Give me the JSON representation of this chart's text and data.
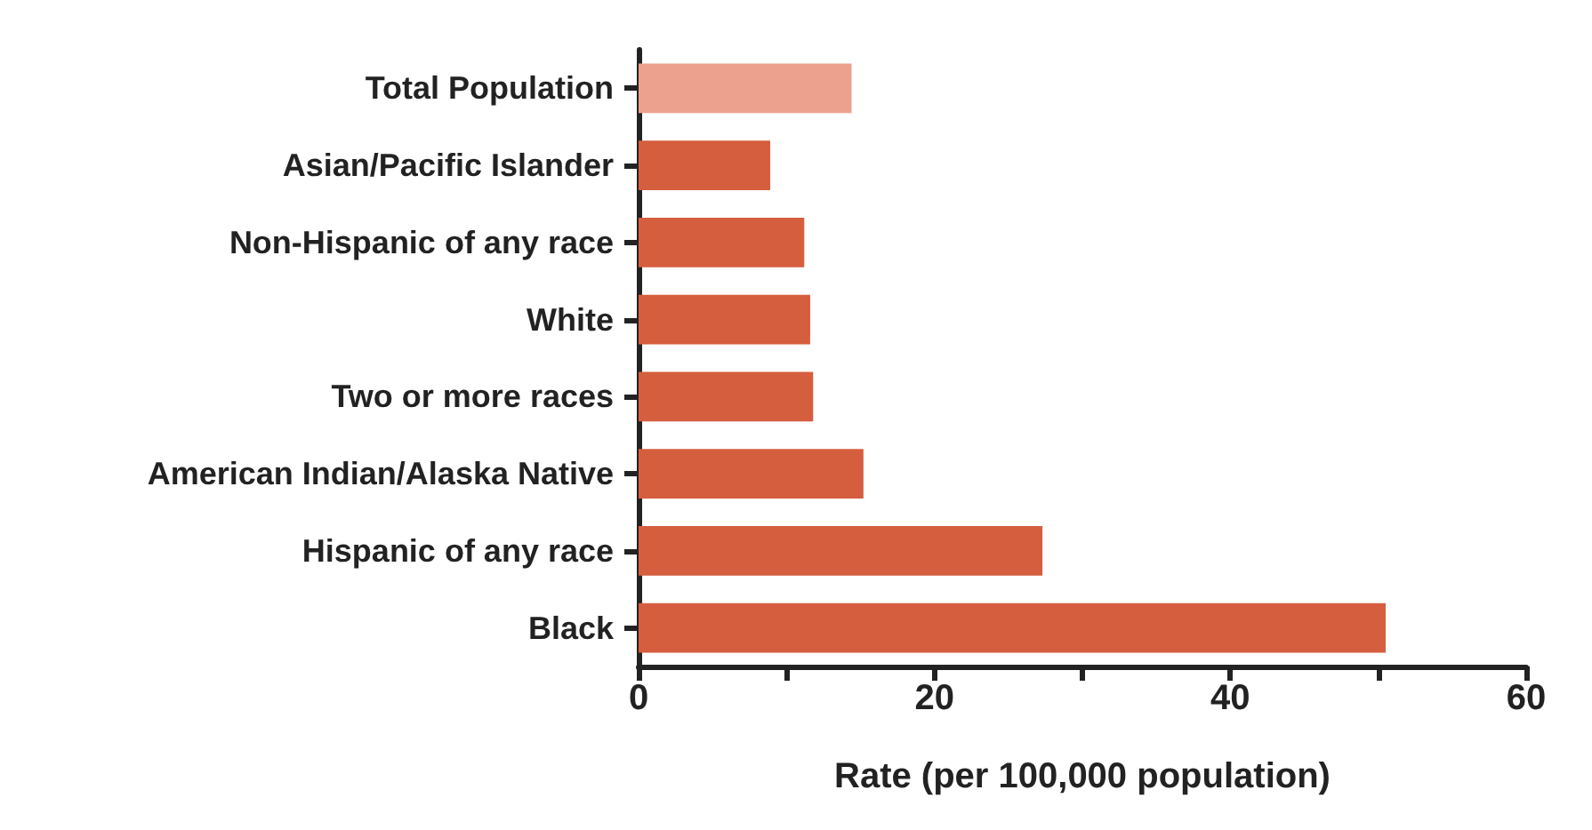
{
  "chart_data": {
    "type": "bar",
    "orientation": "horizontal",
    "xlabel": "Rate (per 100,000 population)",
    "categories": [
      "Total Population",
      "Asian/Pacific Islander",
      "Non-Hispanic of any race",
      "White",
      "Two or more races",
      "American Indian/Alaska Native",
      "Hispanic of any race",
      "Black"
    ],
    "values": [
      14.4,
      8.9,
      11.2,
      11.6,
      11.8,
      15.2,
      27.3,
      50.5
    ],
    "colors": [
      "#eba18d",
      "#d55e3e",
      "#d55e3e",
      "#d55e3e",
      "#d55e3e",
      "#d55e3e",
      "#d55e3e",
      "#d55e3e"
    ],
    "xlim": [
      0,
      60
    ],
    "xticks": [
      0,
      {
        "value": 10,
        "label": null
      },
      20,
      {
        "value": 30,
        "label": null
      },
      40,
      {
        "value": 50,
        "label": null
      },
      60
    ],
    "grid": false
  }
}
